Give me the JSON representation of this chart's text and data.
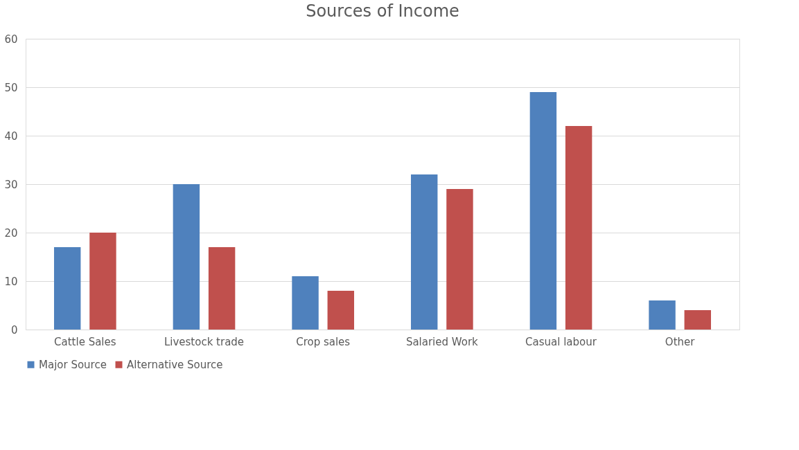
{
  "chart_data": {
    "type": "bar",
    "title": "Sources of Income",
    "categories": [
      "Cattle Sales",
      "Livestock trade",
      "Crop sales",
      "Salaried Work",
      "Casual labour",
      "Other"
    ],
    "series": [
      {
        "name": "Major Source",
        "color": "#4f81bd",
        "values": [
          17,
          30,
          11,
          32,
          49,
          6
        ]
      },
      {
        "name": "Alternative Source",
        "color": "#c0504d",
        "values": [
          20,
          17,
          8,
          29,
          42,
          4
        ]
      }
    ],
    "ylim": [
      0,
      60
    ],
    "yticks": [
      0,
      10,
      20,
      30,
      40,
      50,
      60
    ],
    "grid": "y",
    "legend": "bottom"
  }
}
